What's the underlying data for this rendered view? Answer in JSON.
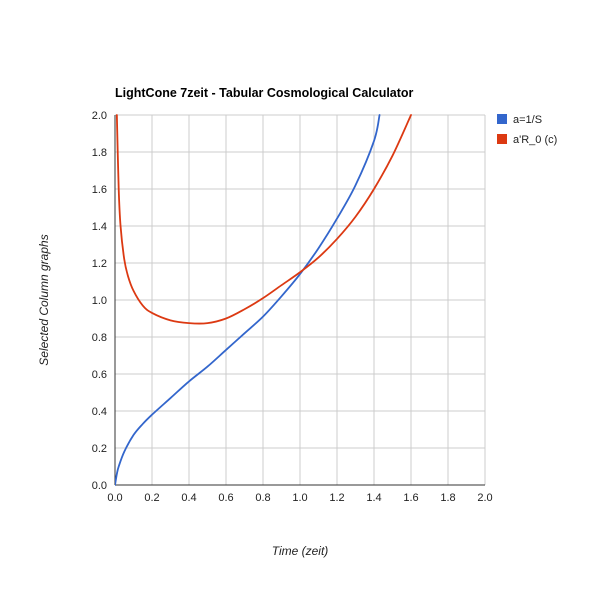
{
  "chart_data": {
    "type": "line",
    "title": "LightCone 7zeit - Tabular Cosmological Calculator",
    "xlabel": "Time (zeit)",
    "ylabel": "Selected Column graphs",
    "xlim": [
      0,
      2
    ],
    "ylim": [
      0,
      2
    ],
    "x_ticks": [
      "0.0",
      "0.2",
      "0.4",
      "0.6",
      "0.8",
      "1.0",
      "1.2",
      "1.4",
      "1.6",
      "1.8",
      "2.0"
    ],
    "y_ticks": [
      "0.0",
      "0.2",
      "0.4",
      "0.6",
      "0.8",
      "1.0",
      "1.2",
      "1.4",
      "1.6",
      "1.8",
      "2.0"
    ],
    "grid": true,
    "legend_position": "right",
    "series": [
      {
        "name": "a=1/S",
        "color": "#3366cc",
        "x": [
          0.0,
          0.01,
          0.02,
          0.05,
          0.1,
          0.15,
          0.2,
          0.3,
          0.4,
          0.5,
          0.6,
          0.7,
          0.8,
          0.9,
          1.0,
          1.1,
          1.2,
          1.3,
          1.4,
          1.43
        ],
        "y": [
          0.0,
          0.06,
          0.1,
          0.18,
          0.27,
          0.33,
          0.38,
          0.47,
          0.56,
          0.64,
          0.73,
          0.82,
          0.91,
          1.02,
          1.14,
          1.28,
          1.44,
          1.62,
          1.86,
          2.0
        ]
      },
      {
        "name": "a'R_0 (c)",
        "color": "#dc3912",
        "x": [
          0.01,
          0.02,
          0.03,
          0.05,
          0.07,
          0.1,
          0.15,
          0.2,
          0.3,
          0.4,
          0.5,
          0.6,
          0.7,
          0.8,
          0.9,
          1.0,
          1.1,
          1.2,
          1.3,
          1.4,
          1.5,
          1.6
        ],
        "y": [
          2.0,
          1.6,
          1.4,
          1.22,
          1.13,
          1.05,
          0.97,
          0.93,
          0.89,
          0.875,
          0.875,
          0.9,
          0.95,
          1.01,
          1.08,
          1.15,
          1.23,
          1.33,
          1.45,
          1.6,
          1.78,
          2.0
        ]
      }
    ]
  }
}
